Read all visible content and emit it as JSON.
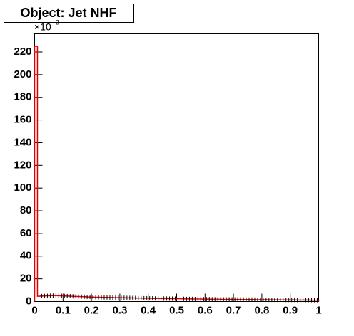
{
  "chart_data": {
    "type": "histogram",
    "title": "Object: Jet NHF",
    "y_multiplier": {
      "base": "×10",
      "exponent": "3"
    },
    "bins": [
      0,
      0.01,
      0.02,
      0.03,
      0.04,
      0.05,
      0.06,
      0.07,
      0.08,
      0.09,
      0.1,
      0.11,
      0.12,
      0.13,
      0.14,
      0.15,
      0.16,
      0.17,
      0.18,
      0.19,
      0.2,
      0.21,
      0.22,
      0.23,
      0.24,
      0.25,
      0.26,
      0.27,
      0.28,
      0.29,
      0.3,
      0.31,
      0.32,
      0.33,
      0.34,
      0.35,
      0.36,
      0.37,
      0.38,
      0.39,
      0.4,
      0.41,
      0.42,
      0.43,
      0.44,
      0.45,
      0.46,
      0.47,
      0.48,
      0.49,
      0.5,
      0.51,
      0.52,
      0.53,
      0.54,
      0.55,
      0.56,
      0.57,
      0.58,
      0.59,
      0.6,
      0.61,
      0.62,
      0.63,
      0.64,
      0.65,
      0.66,
      0.67,
      0.68,
      0.69,
      0.7,
      0.71,
      0.72,
      0.73,
      0.74,
      0.75,
      0.76,
      0.77,
      0.78,
      0.79,
      0.8,
      0.81,
      0.82,
      0.83,
      0.84,
      0.85,
      0.86,
      0.87,
      0.88,
      0.89,
      0.9,
      0.91,
      0.92,
      0.93,
      0.94,
      0.95,
      0.96,
      0.97,
      0.98,
      0.99,
      1
    ],
    "values": [
      225,
      4.6,
      4.8,
      4.9,
      5.0,
      5.1,
      5.2,
      5.2,
      5.1,
      5.0,
      4.9,
      4.8,
      4.7,
      4.6,
      4.5,
      4.4,
      4.3,
      4.2,
      4.1,
      4.0,
      3.9,
      3.8,
      3.8,
      3.7,
      3.6,
      3.6,
      3.5,
      3.5,
      3.4,
      3.4,
      3.3,
      3.3,
      3.2,
      3.2,
      3.1,
      3.1,
      3.0,
      3.0,
      2.9,
      2.9,
      2.8,
      2.8,
      2.7,
      2.7,
      2.6,
      2.6,
      2.6,
      2.5,
      2.5,
      2.5,
      2.4,
      2.4,
      2.4,
      2.3,
      2.3,
      2.3,
      2.2,
      2.2,
      2.2,
      2.1,
      2.1,
      2.1,
      2.0,
      2.0,
      2.0,
      2.0,
      1.9,
      1.9,
      1.9,
      1.9,
      1.8,
      1.8,
      1.8,
      1.8,
      1.7,
      1.7,
      1.7,
      1.7,
      1.6,
      1.6,
      1.6,
      1.6,
      1.5,
      1.5,
      1.5,
      1.5,
      1.5,
      1.4,
      1.4,
      1.4,
      1.4,
      1.4,
      1.3,
      1.3,
      1.3,
      1.3,
      1.3,
      1.2,
      1.2,
      1.2
    ],
    "color": "#e00000",
    "marker_color": "#000000",
    "xlim": [
      0,
      1
    ],
    "xticks": [
      0,
      0.1,
      0.2,
      0.3,
      0.4,
      0.5,
      0.6,
      0.7,
      0.8,
      0.9,
      1
    ],
    "ylim": [
      0,
      236
    ],
    "yticks": [
      0,
      20,
      40,
      60,
      80,
      100,
      120,
      140,
      160,
      180,
      200,
      220
    ]
  }
}
